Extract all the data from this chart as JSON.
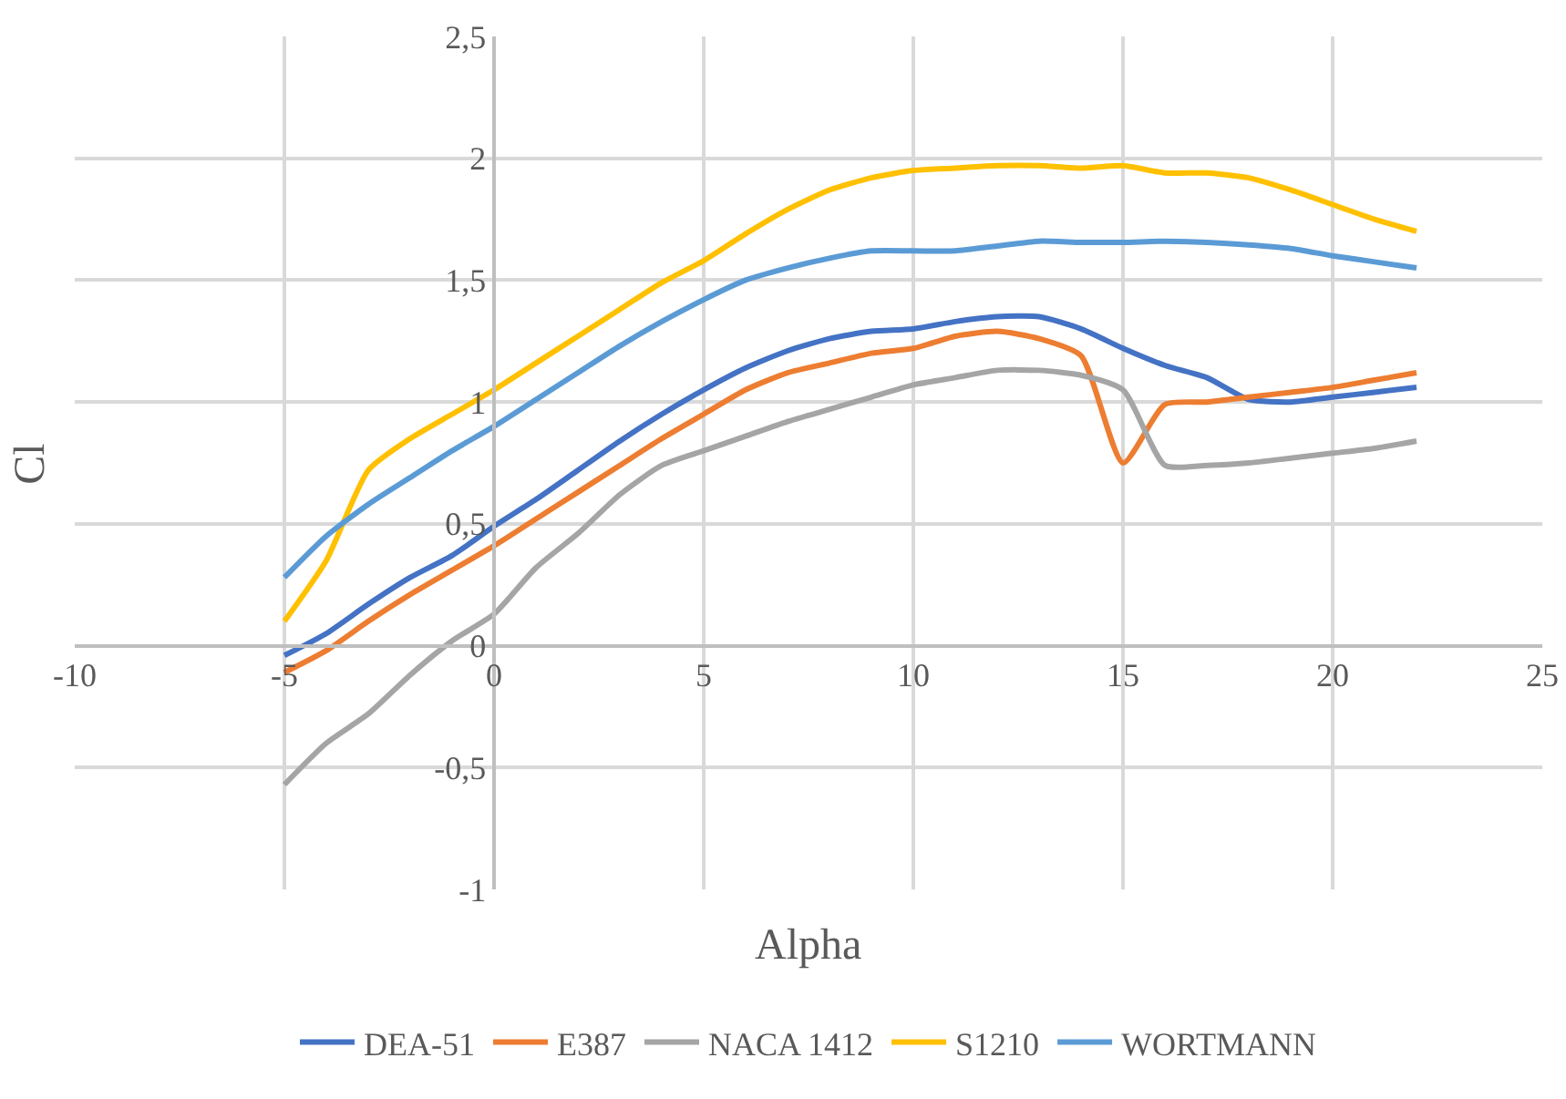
{
  "chart_data": {
    "type": "line",
    "xlabel": "Alpha",
    "ylabel": "Cl",
    "x": [
      -5,
      -4,
      -3,
      -2,
      -1,
      0,
      1,
      2,
      3,
      4,
      5,
      6,
      7,
      8,
      9,
      10,
      11,
      12,
      13,
      14,
      15,
      16,
      17,
      18,
      19,
      20,
      21,
      22
    ],
    "series": [
      {
        "name": "DEA-51",
        "color": "#4472c4",
        "values": [
          -0.04,
          0.05,
          0.17,
          0.28,
          0.37,
          0.49,
          0.6,
          0.72,
          0.84,
          0.95,
          1.05,
          1.14,
          1.21,
          1.26,
          1.29,
          1.3,
          1.33,
          1.35,
          1.35,
          1.3,
          1.22,
          1.15,
          1.1,
          1.01,
          1.0,
          1.02,
          1.04,
          1.06
        ]
      },
      {
        "name": "E387",
        "color": "#ed7d31",
        "values": [
          -0.11,
          -0.02,
          0.1,
          0.21,
          0.31,
          0.41,
          0.52,
          0.63,
          0.74,
          0.85,
          0.95,
          1.05,
          1.12,
          1.16,
          1.2,
          1.22,
          1.27,
          1.29,
          1.26,
          1.19,
          0.75,
          0.99,
          1.0,
          1.02,
          1.04,
          1.06,
          1.09,
          1.12
        ]
      },
      {
        "name": "NACA 1412",
        "color": "#a5a5a5",
        "values": [
          -0.57,
          -0.4,
          -0.28,
          -0.12,
          0.02,
          0.13,
          0.32,
          0.46,
          0.62,
          0.74,
          0.8,
          0.86,
          0.92,
          0.97,
          1.02,
          1.07,
          1.1,
          1.13,
          1.13,
          1.11,
          1.05,
          0.74,
          0.74,
          0.75,
          0.77,
          0.79,
          0.81,
          0.84
        ]
      },
      {
        "name": "S1210",
        "color": "#ffc000",
        "values": [
          0.1,
          0.35,
          0.72,
          0.85,
          0.95,
          1.05,
          1.16,
          1.27,
          1.38,
          1.49,
          1.58,
          1.69,
          1.79,
          1.87,
          1.92,
          1.95,
          1.96,
          1.97,
          1.97,
          1.96,
          1.97,
          1.94,
          1.94,
          1.92,
          1.87,
          1.81,
          1.75,
          1.7
        ]
      },
      {
        "name": "WORTMANN",
        "color": "#5b9bd5",
        "values": [
          0.28,
          0.45,
          0.58,
          0.69,
          0.8,
          0.9,
          1.01,
          1.12,
          1.23,
          1.33,
          1.42,
          1.5,
          1.55,
          1.59,
          1.62,
          1.62,
          1.62,
          1.64,
          1.66,
          1.655,
          1.655,
          1.66,
          1.655,
          1.645,
          1.63,
          1.6,
          1.575,
          1.55
        ]
      }
    ],
    "xlim": [
      -10,
      25
    ],
    "xticks": [
      -10,
      -5,
      0,
      5,
      10,
      15,
      20,
      25
    ],
    "ylim": [
      -1,
      2.5
    ],
    "yticks": [
      -1,
      {
        "value": -0.5,
        "label": "-0,5"
      },
      0,
      {
        "value": 0.5,
        "label": "0,5"
      },
      1,
      {
        "value": 1.5,
        "label": "1,5"
      },
      2,
      {
        "value": 2.5,
        "label": "2,5"
      }
    ],
    "grid": true,
    "legend": "bottom",
    "marker": "none",
    "line_style": "solid"
  }
}
